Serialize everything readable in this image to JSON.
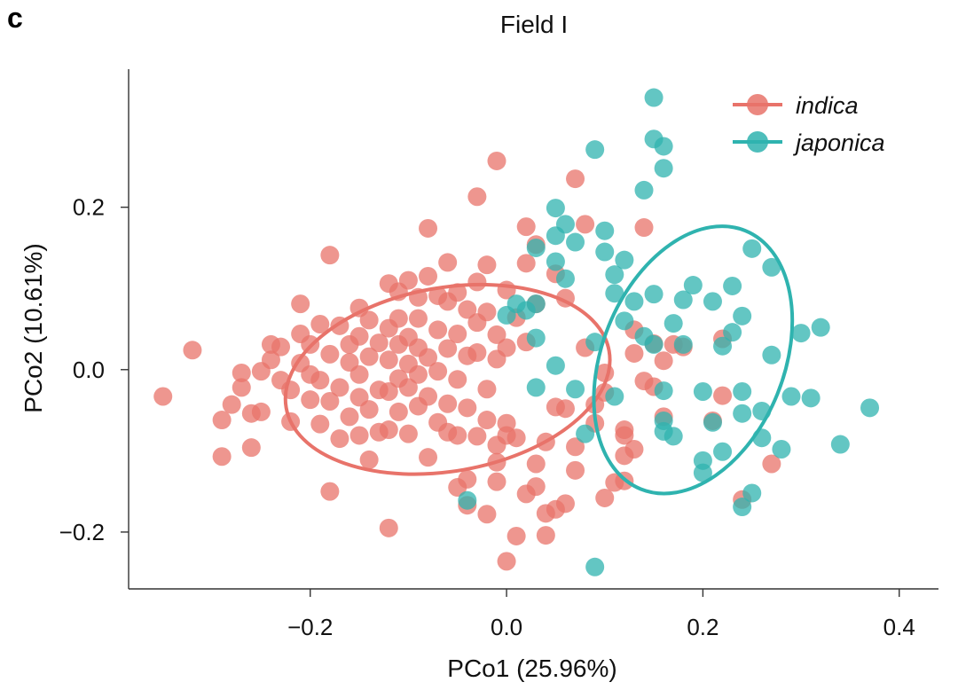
{
  "panel_label": "c",
  "chart_data": {
    "type": "scatter",
    "title": "Field I",
    "xlabel": "PCo1 (25.96%)",
    "ylabel": "PCo2 (10.61%)",
    "xlim": [
      -0.385,
      0.44
    ],
    "ylim": [
      -0.27,
      0.37
    ],
    "xticks": [
      -0.2,
      0.0,
      0.2,
      0.4
    ],
    "xtick_labels": [
      "−0.2",
      "0.0",
      "0.2",
      "0.4"
    ],
    "yticks": [
      -0.2,
      0.0,
      0.2
    ],
    "ytick_labels": [
      "−0.2",
      "0.0",
      "0.2"
    ],
    "grid": false,
    "legend_position": "top-right",
    "series": [
      {
        "name": "indica",
        "color": "#E8736A",
        "ellipse": {
          "cx": -0.06,
          "cy": -0.012,
          "rx": 0.167,
          "ry": 0.113,
          "angle_deg": -10
        },
        "points": [
          [
            -0.35,
            -0.033
          ],
          [
            -0.32,
            0.024
          ],
          [
            -0.29,
            -0.062
          ],
          [
            -0.29,
            -0.107
          ],
          [
            -0.28,
            -0.043
          ],
          [
            -0.27,
            -0.022
          ],
          [
            -0.27,
            -0.004
          ],
          [
            -0.26,
            -0.054
          ],
          [
            -0.26,
            -0.096
          ],
          [
            -0.25,
            -0.002
          ],
          [
            -0.25,
            -0.052
          ],
          [
            -0.24,
            0.031
          ],
          [
            -0.24,
            0.012
          ],
          [
            -0.23,
            -0.013
          ],
          [
            -0.23,
            0.028
          ],
          [
            -0.22,
            -0.025
          ],
          [
            -0.22,
            -0.064
          ],
          [
            -0.21,
            0.008
          ],
          [
            -0.21,
            0.044
          ],
          [
            -0.21,
            0.081
          ],
          [
            -0.2,
            -0.006
          ],
          [
            -0.2,
            0.031
          ],
          [
            -0.2,
            -0.037
          ],
          [
            -0.19,
            0.056
          ],
          [
            -0.19,
            -0.013
          ],
          [
            -0.19,
            -0.067
          ],
          [
            -0.18,
            -0.039
          ],
          [
            -0.18,
            0.141
          ],
          [
            -0.18,
            0.019
          ],
          [
            -0.18,
            -0.15
          ],
          [
            -0.17,
            0.054
          ],
          [
            -0.17,
            -0.085
          ],
          [
            -0.17,
            -0.022
          ],
          [
            -0.16,
            0.031
          ],
          [
            -0.16,
            -0.058
          ],
          [
            -0.16,
            0.009
          ],
          [
            -0.15,
            0.076
          ],
          [
            -0.15,
            -0.034
          ],
          [
            -0.15,
            0.041
          ],
          [
            -0.15,
            -0.081
          ],
          [
            -0.15,
            -0.006
          ],
          [
            -0.14,
            0.061
          ],
          [
            -0.14,
            0.016
          ],
          [
            -0.14,
            -0.049
          ],
          [
            -0.14,
            -0.111
          ],
          [
            -0.13,
            0.033
          ],
          [
            -0.13,
            -0.025
          ],
          [
            -0.13,
            -0.077
          ],
          [
            -0.12,
            0.012
          ],
          [
            -0.12,
            0.106
          ],
          [
            -0.12,
            -0.195
          ],
          [
            -0.12,
            0.051
          ],
          [
            -0.12,
            -0.027
          ],
          [
            -0.12,
            -0.074
          ],
          [
            -0.11,
            0.063
          ],
          [
            -0.11,
            0.031
          ],
          [
            -0.11,
            -0.011
          ],
          [
            -0.11,
            0.096
          ],
          [
            -0.11,
            -0.052
          ],
          [
            -0.1,
            0.007
          ],
          [
            -0.1,
            0.04
          ],
          [
            -0.1,
            0.11
          ],
          [
            -0.1,
            -0.079
          ],
          [
            -0.1,
            -0.022
          ],
          [
            -0.09,
            0.063
          ],
          [
            -0.09,
            0.027
          ],
          [
            -0.09,
            -0.006
          ],
          [
            -0.09,
            0.089
          ],
          [
            -0.09,
            -0.045
          ],
          [
            -0.08,
            0.174
          ],
          [
            -0.08,
            0.015
          ],
          [
            -0.08,
            0.115
          ],
          [
            -0.08,
            -0.033
          ],
          [
            -0.08,
            -0.108
          ],
          [
            -0.07,
            0.049
          ],
          [
            -0.07,
            0.091
          ],
          [
            -0.07,
            -0.065
          ],
          [
            -0.07,
            -0.002
          ],
          [
            -0.06,
            0.026
          ],
          [
            -0.06,
            -0.042
          ],
          [
            -0.06,
            0.132
          ],
          [
            -0.06,
            -0.077
          ],
          [
            -0.06,
            0.084
          ],
          [
            -0.05,
            -0.012
          ],
          [
            -0.05,
            0.044
          ],
          [
            -0.05,
            -0.145
          ],
          [
            -0.05,
            0.095
          ],
          [
            -0.05,
            -0.081
          ],
          [
            -0.04,
            0.017
          ],
          [
            -0.04,
            -0.047
          ],
          [
            -0.04,
            0.074
          ],
          [
            -0.04,
            -0.167
          ],
          [
            -0.04,
            -0.135
          ],
          [
            -0.03,
            0.108
          ],
          [
            -0.03,
            0.021
          ],
          [
            -0.03,
            -0.082
          ],
          [
            -0.03,
            0.213
          ],
          [
            -0.03,
            0.058
          ],
          [
            -0.02,
            -0.024
          ],
          [
            -0.02,
            0.129
          ],
          [
            -0.02,
            -0.062
          ],
          [
            -0.02,
            0.071
          ],
          [
            -0.02,
            -0.178
          ],
          [
            -0.01,
            0.013
          ],
          [
            -0.01,
            -0.114
          ],
          [
            -0.01,
            0.257
          ],
          [
            -0.01,
            0.043
          ],
          [
            -0.01,
            -0.093
          ],
          [
            -0.01,
            -0.138
          ],
          [
            0.0,
            0.027
          ],
          [
            0.0,
            -0.066
          ],
          [
            0.0,
            0.098
          ],
          [
            0.0,
            -0.081
          ],
          [
            0.0,
            -0.236
          ],
          [
            0.01,
            0.064
          ],
          [
            0.01,
            -0.084
          ],
          [
            0.01,
            -0.205
          ],
          [
            0.02,
            0.131
          ],
          [
            0.02,
            -0.153
          ],
          [
            0.02,
            0.176
          ],
          [
            0.02,
            0.034
          ],
          [
            0.03,
            -0.144
          ],
          [
            0.03,
            0.154
          ],
          [
            0.03,
            -0.116
          ],
          [
            0.03,
            0.081
          ],
          [
            0.04,
            -0.177
          ],
          [
            0.04,
            -0.204
          ],
          [
            0.04,
            -0.089
          ],
          [
            0.05,
            0.118
          ],
          [
            0.05,
            -0.046
          ],
          [
            0.05,
            -0.172
          ],
          [
            0.06,
            -0.048
          ],
          [
            0.06,
            0.088
          ],
          [
            0.06,
            -0.165
          ],
          [
            0.07,
            -0.095
          ],
          [
            0.07,
            -0.124
          ],
          [
            0.07,
            0.235
          ],
          [
            0.08,
            0.179
          ],
          [
            0.08,
            0.027
          ],
          [
            0.09,
            -0.043
          ],
          [
            0.09,
            -0.066
          ],
          [
            0.1,
            -0.158
          ],
          [
            0.1,
            -0.004
          ],
          [
            0.1,
            -0.028
          ],
          [
            0.11,
            -0.139
          ],
          [
            0.12,
            -0.106
          ],
          [
            0.12,
            -0.074
          ],
          [
            0.12,
            -0.081
          ],
          [
            0.12,
            -0.137
          ],
          [
            0.13,
            0.02
          ],
          [
            0.13,
            0.049
          ],
          [
            0.13,
            -0.098
          ],
          [
            0.14,
            -0.014
          ],
          [
            0.14,
            0.175
          ],
          [
            0.15,
            0.032
          ],
          [
            0.15,
            -0.021
          ],
          [
            0.16,
            -0.058
          ],
          [
            0.16,
            0.011
          ],
          [
            0.17,
            0.031
          ],
          [
            0.18,
            0.028
          ],
          [
            0.21,
            -0.063
          ],
          [
            0.22,
            0.038
          ],
          [
            0.22,
            -0.032
          ],
          [
            0.24,
            -0.16
          ],
          [
            0.27,
            -0.116
          ]
        ]
      },
      {
        "name": "japonica",
        "color": "#2FB3AF",
        "ellipse": {
          "cx": 0.19,
          "cy": 0.012,
          "rx": 0.142,
          "ry": 0.112,
          "angle_deg": -68
        },
        "points": [
          [
            0.0,
            0.067
          ],
          [
            0.01,
            0.081
          ],
          [
            0.02,
            0.073
          ],
          [
            0.03,
            -0.022
          ],
          [
            0.03,
            0.15
          ],
          [
            0.03,
            0.039
          ],
          [
            0.03,
            0.081
          ],
          [
            0.05,
            0.199
          ],
          [
            0.05,
            0.165
          ],
          [
            0.05,
            0.133
          ],
          [
            0.06,
            0.179
          ],
          [
            0.06,
            0.112
          ],
          [
            0.07,
            -0.024
          ],
          [
            0.07,
            0.157
          ],
          [
            0.08,
            -0.079
          ],
          [
            0.09,
            0.271
          ],
          [
            0.09,
            -0.243
          ],
          [
            0.1,
            0.145
          ],
          [
            0.1,
            0.171
          ],
          [
            0.11,
            0.094
          ],
          [
            0.11,
            -0.033
          ],
          [
            0.11,
            0.117
          ],
          [
            0.12,
            0.06
          ],
          [
            0.12,
            0.135
          ],
          [
            0.13,
            0.084
          ],
          [
            0.14,
            0.041
          ],
          [
            0.14,
            0.221
          ],
          [
            0.15,
            0.284
          ],
          [
            0.15,
            0.335
          ],
          [
            0.15,
            0.031
          ],
          [
            0.16,
            0.248
          ],
          [
            0.16,
            0.275
          ],
          [
            0.16,
            -0.026
          ],
          [
            0.16,
            -0.063
          ],
          [
            0.17,
            0.057
          ],
          [
            0.17,
            -0.082
          ],
          [
            0.18,
            0.086
          ],
          [
            0.18,
            0.031
          ],
          [
            0.19,
            0.104
          ],
          [
            0.2,
            -0.112
          ],
          [
            0.2,
            -0.027
          ],
          [
            0.21,
            0.084
          ],
          [
            0.21,
            -0.065
          ],
          [
            0.22,
            0.029
          ],
          [
            0.22,
            -0.101
          ],
          [
            0.23,
            0.103
          ],
          [
            0.23,
            0.046
          ],
          [
            0.24,
            -0.027
          ],
          [
            0.24,
            -0.169
          ],
          [
            0.25,
            0.149
          ],
          [
            0.25,
            -0.152
          ],
          [
            0.26,
            -0.084
          ],
          [
            0.26,
            -0.051
          ],
          [
            0.27,
            0.126
          ],
          [
            0.27,
            0.018
          ],
          [
            0.28,
            -0.098
          ],
          [
            0.29,
            -0.033
          ],
          [
            0.3,
            0.045
          ],
          [
            0.31,
            -0.035
          ],
          [
            0.32,
            0.052
          ],
          [
            0.34,
            -0.092
          ],
          [
            0.37,
            -0.047
          ],
          [
            -0.04,
            -0.161
          ],
          [
            0.05,
            0.005
          ],
          [
            0.09,
            0.034
          ],
          [
            0.15,
            0.093
          ],
          [
            0.2,
            -0.127
          ],
          [
            0.24,
            -0.054
          ],
          [
            0.16,
            -0.076
          ],
          [
            0.24,
            0.066
          ]
        ]
      }
    ]
  }
}
